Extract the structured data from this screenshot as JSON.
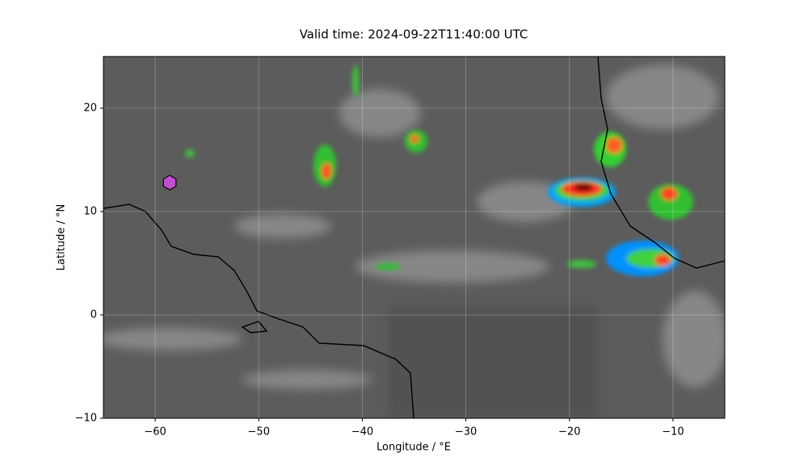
{
  "chart_data": {
    "type": "map",
    "title": "Valid time: 2024-09-22T11:40:00 UTC",
    "xlabel": "Longitude / °E",
    "ylabel": "Latitude / °N",
    "xlim": [
      -65,
      -5
    ],
    "ylim": [
      -10,
      25
    ],
    "xticks": [
      {
        "value": -60,
        "label": "−60"
      },
      {
        "value": -50,
        "label": "−50"
      },
      {
        "value": -40,
        "label": "−40"
      },
      {
        "value": -30,
        "label": "−30"
      },
      {
        "value": -20,
        "label": "−20"
      },
      {
        "value": -10,
        "label": "−10"
      }
    ],
    "yticks": [
      {
        "value": -10,
        "label": "−10"
      },
      0,
      10,
      20
    ],
    "grid": true,
    "series": [
      {
        "color": "#c050d0",
        "marker": "hexagon",
        "x": [
          -58.6
        ],
        "values": [
          12.8
        ]
      }
    ]
  }
}
